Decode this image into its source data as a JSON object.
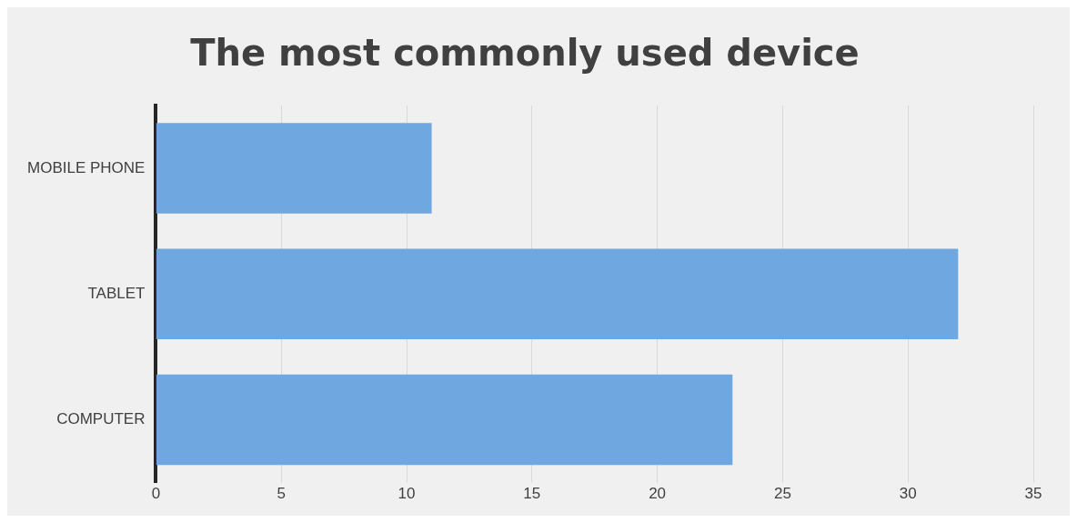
{
  "chart_data": {
    "type": "bar",
    "orientation": "horizontal",
    "title": "The most commonly used device",
    "categories": [
      "MOBILE PHONE",
      "TABLET",
      "COMPUTER"
    ],
    "values": [
      11,
      32,
      23
    ],
    "color": "#6fa8e0",
    "xlim": [
      0,
      35
    ],
    "xticks": [
      0,
      5,
      10,
      15,
      20,
      25,
      30,
      35
    ],
    "grid": "x",
    "legend": false
  }
}
